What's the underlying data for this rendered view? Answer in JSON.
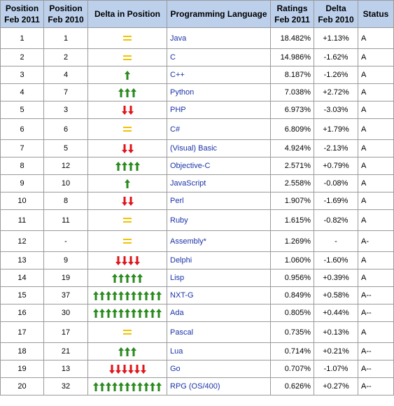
{
  "headers": {
    "pos2011": [
      "Position",
      "Feb 2011"
    ],
    "pos2010": [
      "Position",
      "Feb 2010"
    ],
    "delta_pos": "Delta in Position",
    "language": "Programming Language",
    "ratings": [
      "Ratings",
      "Feb 2011"
    ],
    "delta": [
      "Delta",
      "Feb 2010"
    ],
    "status": "Status"
  },
  "colors": {
    "up": "#2a8a1e",
    "down": "#e0141b",
    "same": "#f2c200"
  },
  "rows": [
    {
      "pos2011": "1",
      "pos2010": "1",
      "indicator": "same",
      "count": 0,
      "language": "Java",
      "rating": "18.482%",
      "delta": "+1.13%",
      "status": "A"
    },
    {
      "pos2011": "2",
      "pos2010": "2",
      "indicator": "same",
      "count": 0,
      "language": "C",
      "rating": "14.986%",
      "delta": "-1.62%",
      "status": "A"
    },
    {
      "pos2011": "3",
      "pos2010": "4",
      "indicator": "up",
      "count": 1,
      "language": "C++",
      "rating": "8.187%",
      "delta": "-1.26%",
      "status": "A"
    },
    {
      "pos2011": "4",
      "pos2010": "7",
      "indicator": "up",
      "count": 3,
      "language": "Python",
      "rating": "7.038%",
      "delta": "+2.72%",
      "status": "A"
    },
    {
      "pos2011": "5",
      "pos2010": "3",
      "indicator": "down",
      "count": 2,
      "language": "PHP",
      "rating": "6.973%",
      "delta": "-3.03%",
      "status": "A"
    },
    {
      "pos2011": "6",
      "pos2010": "6",
      "indicator": "same",
      "count": 0,
      "language": "C#",
      "rating": "6.809%",
      "delta": "+1.79%",
      "status": "A"
    },
    {
      "pos2011": "7",
      "pos2010": "5",
      "indicator": "down",
      "count": 2,
      "language": "(Visual) Basic",
      "rating": "4.924%",
      "delta": "-2.13%",
      "status": "A"
    },
    {
      "pos2011": "8",
      "pos2010": "12",
      "indicator": "up",
      "count": 4,
      "language": "Objective-C",
      "rating": "2.571%",
      "delta": "+0.79%",
      "status": "A"
    },
    {
      "pos2011": "9",
      "pos2010": "10",
      "indicator": "up",
      "count": 1,
      "language": "JavaScript",
      "rating": "2.558%",
      "delta": "-0.08%",
      "status": "A"
    },
    {
      "pos2011": "10",
      "pos2010": "8",
      "indicator": "down",
      "count": 2,
      "language": "Perl",
      "rating": "1.907%",
      "delta": "-1.69%",
      "status": "A"
    },
    {
      "pos2011": "11",
      "pos2010": "11",
      "indicator": "same",
      "count": 0,
      "language": "Ruby",
      "rating": "1.615%",
      "delta": "-0.82%",
      "status": "A"
    },
    {
      "pos2011": "12",
      "pos2010": "-",
      "indicator": "same",
      "count": 0,
      "language": "Assembly*",
      "rating": "1.269%",
      "delta": "-",
      "status": "A-"
    },
    {
      "pos2011": "13",
      "pos2010": "9",
      "indicator": "down",
      "count": 4,
      "language": "Delphi",
      "rating": "1.060%",
      "delta": "-1.60%",
      "status": "A"
    },
    {
      "pos2011": "14",
      "pos2010": "19",
      "indicator": "up",
      "count": 5,
      "language": "Lisp",
      "rating": "0.956%",
      "delta": "+0.39%",
      "status": "A"
    },
    {
      "pos2011": "15",
      "pos2010": "37",
      "indicator": "up",
      "count": 11,
      "language": "NXT-G",
      "rating": "0.849%",
      "delta": "+0.58%",
      "status": "A--"
    },
    {
      "pos2011": "16",
      "pos2010": "30",
      "indicator": "up",
      "count": 11,
      "language": "Ada",
      "rating": "0.805%",
      "delta": "+0.44%",
      "status": "A--"
    },
    {
      "pos2011": "17",
      "pos2010": "17",
      "indicator": "same",
      "count": 0,
      "language": "Pascal",
      "rating": "0.735%",
      "delta": "+0.13%",
      "status": "A"
    },
    {
      "pos2011": "18",
      "pos2010": "21",
      "indicator": "up",
      "count": 3,
      "language": "Lua",
      "rating": "0.714%",
      "delta": "+0.21%",
      "status": "A--"
    },
    {
      "pos2011": "19",
      "pos2010": "13",
      "indicator": "down",
      "count": 6,
      "language": "Go",
      "rating": "0.707%",
      "delta": "-1.07%",
      "status": "A--"
    },
    {
      "pos2011": "20",
      "pos2010": "32",
      "indicator": "up",
      "count": 11,
      "language": "RPG (OS/400)",
      "rating": "0.626%",
      "delta": "+0.27%",
      "status": "A--"
    }
  ]
}
